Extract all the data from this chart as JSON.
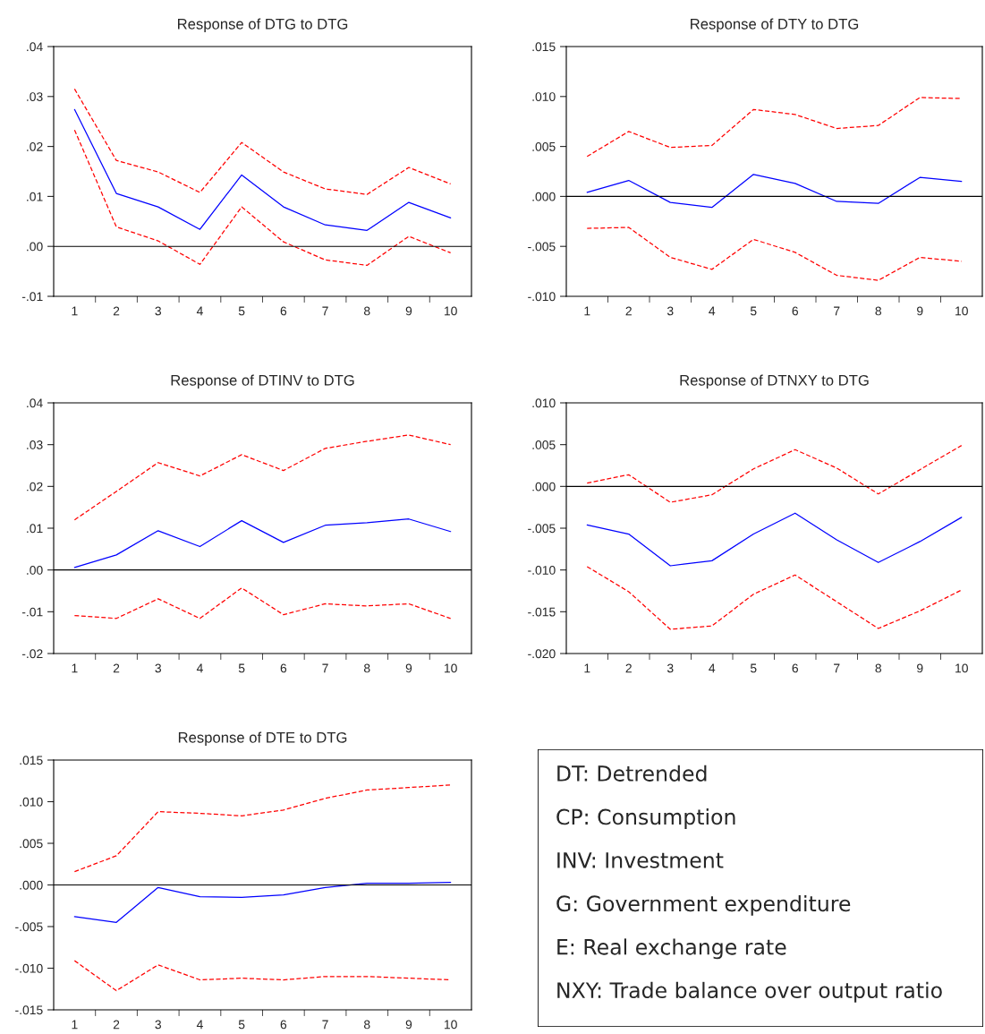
{
  "chart_data": [
    {
      "type": "line",
      "title": "Response of DTG to DTG",
      "categories": [
        "1",
        "2",
        "3",
        "4",
        "5",
        "6",
        "7",
        "8",
        "9",
        "10"
      ],
      "series": [
        {
          "color": "#0000ff",
          "line_style": "solid",
          "values": [
            0.0274,
            0.0106,
            0.0079,
            0.0034,
            0.0143,
            0.0079,
            0.0043,
            0.0032,
            0.0088,
            0.0057
          ]
        },
        {
          "color": "#ff0000",
          "line_style": "dashed",
          "values": [
            0.0315,
            0.0172,
            0.0149,
            0.0108,
            0.0208,
            0.0149,
            0.0115,
            0.0104,
            0.0158,
            0.0125
          ]
        },
        {
          "color": "#ff0000",
          "line_style": "dashed",
          "values": [
            0.0233,
            0.0039,
            0.0011,
            -0.0036,
            0.0079,
            0.0009,
            -0.0027,
            -0.0038,
            0.002,
            -0.0013
          ]
        }
      ],
      "ylim": [
        -0.01,
        0.04
      ],
      "yticks": [
        {
          "value": -0.01,
          "label": "-.01"
        },
        {
          "value": 0,
          "label": ".00"
        },
        {
          "value": 0.01,
          "label": ".01"
        },
        {
          "value": 0.02,
          "label": ".02"
        },
        {
          "value": 0.03,
          "label": ".03"
        },
        {
          "value": 0.04,
          "label": ".04"
        }
      ],
      "ref_lines": [
        {
          "axis": "y",
          "value": 0,
          "color": "#000000"
        }
      ],
      "grid": false,
      "legend": false
    },
    {
      "type": "line",
      "title": "Response of DTY to DTG",
      "categories": [
        "1",
        "2",
        "3",
        "4",
        "5",
        "6",
        "7",
        "8",
        "9",
        "10"
      ],
      "series": [
        {
          "color": "#0000ff",
          "line_style": "solid",
          "values": [
            0.0004,
            0.0016,
            -0.0006,
            -0.0011,
            0.0022,
            0.0013,
            -0.0005,
            -0.0007,
            0.0019,
            0.0015
          ]
        },
        {
          "color": "#ff0000",
          "line_style": "dashed",
          "values": [
            0.004,
            0.0065,
            0.0049,
            0.0051,
            0.0087,
            0.0082,
            0.0068,
            0.0071,
            0.0099,
            0.0098
          ]
        },
        {
          "color": "#ff0000",
          "line_style": "dashed",
          "values": [
            -0.0032,
            -0.0031,
            -0.0061,
            -0.0073,
            -0.0043,
            -0.0056,
            -0.0079,
            -0.0084,
            -0.0061,
            -0.0065
          ]
        }
      ],
      "ylim": [
        -0.01,
        0.015
      ],
      "yticks": [
        {
          "value": -0.01,
          "label": "-.010"
        },
        {
          "value": -0.005,
          "label": "-.005"
        },
        {
          "value": 0,
          "label": ".000"
        },
        {
          "value": 0.005,
          "label": ".005"
        },
        {
          "value": 0.01,
          "label": ".010"
        },
        {
          "value": 0.015,
          "label": ".015"
        }
      ],
      "ref_lines": [
        {
          "axis": "y",
          "value": 0,
          "color": "#000000"
        }
      ],
      "grid": false,
      "legend": false
    },
    {
      "type": "line",
      "title": "Response of DTINV to DTG",
      "categories": [
        "1",
        "2",
        "3",
        "4",
        "5",
        "6",
        "7",
        "8",
        "9",
        "10"
      ],
      "series": [
        {
          "color": "#0000ff",
          "line_style": "solid",
          "values": [
            0.0006,
            0.0036,
            0.0094,
            0.0056,
            0.0118,
            0.0066,
            0.0107,
            0.0113,
            0.0122,
            0.0092
          ]
        },
        {
          "color": "#ff0000",
          "line_style": "dashed",
          "values": [
            0.012,
            0.0188,
            0.0257,
            0.0225,
            0.0276,
            0.0238,
            0.0291,
            0.0308,
            0.0323,
            0.03
          ]
        },
        {
          "color": "#ff0000",
          "line_style": "dashed",
          "values": [
            -0.0109,
            -0.0116,
            -0.0069,
            -0.0116,
            -0.0043,
            -0.0107,
            -0.0081,
            -0.0086,
            -0.0081,
            -0.0116
          ]
        }
      ],
      "ylim": [
        -0.02,
        0.04
      ],
      "yticks": [
        {
          "value": -0.02,
          "label": "-.02"
        },
        {
          "value": -0.01,
          "label": "-.01"
        },
        {
          "value": 0,
          "label": ".00"
        },
        {
          "value": 0.01,
          "label": ".01"
        },
        {
          "value": 0.02,
          "label": ".02"
        },
        {
          "value": 0.03,
          "label": ".03"
        },
        {
          "value": 0.04,
          "label": ".04"
        }
      ],
      "ref_lines": [
        {
          "axis": "y",
          "value": 0,
          "color": "#000000"
        }
      ],
      "grid": false,
      "legend": false
    },
    {
      "type": "line",
      "title": "Response of DTNXY to DTG",
      "categories": [
        "1",
        "2",
        "3",
        "4",
        "5",
        "6",
        "7",
        "8",
        "9",
        "10"
      ],
      "series": [
        {
          "color": "#0000ff",
          "line_style": "solid",
          "values": [
            -0.0046,
            -0.0057,
            -0.0095,
            -0.0089,
            -0.0057,
            -0.0032,
            -0.0064,
            -0.0091,
            -0.0066,
            -0.0037
          ]
        },
        {
          "color": "#ff0000",
          "line_style": "dashed",
          "values": [
            0.0004,
            0.0014,
            -0.0019,
            -0.001,
            0.0021,
            0.0044,
            0.0022,
            -0.0009,
            0.002,
            0.0049
          ]
        },
        {
          "color": "#ff0000",
          "line_style": "dashed",
          "values": [
            -0.0096,
            -0.0126,
            -0.0171,
            -0.0167,
            -0.0129,
            -0.0106,
            -0.0138,
            -0.017,
            -0.0149,
            -0.0124
          ]
        }
      ],
      "ylim": [
        -0.02,
        0.01
      ],
      "yticks": [
        {
          "value": -0.02,
          "label": "-.020"
        },
        {
          "value": -0.015,
          "label": "-.015"
        },
        {
          "value": -0.01,
          "label": "-.010"
        },
        {
          "value": -0.005,
          "label": "-.005"
        },
        {
          "value": 0,
          "label": ".000"
        },
        {
          "value": 0.005,
          "label": ".005"
        },
        {
          "value": 0.01,
          "label": ".010"
        }
      ],
      "ref_lines": [
        {
          "axis": "y",
          "value": 0,
          "color": "#000000"
        }
      ],
      "grid": false,
      "legend": false
    },
    {
      "type": "line",
      "title": "Response of DTE to DTG",
      "categories": [
        "1",
        "2",
        "3",
        "4",
        "5",
        "6",
        "7",
        "8",
        "9",
        "10"
      ],
      "series": [
        {
          "color": "#0000ff",
          "line_style": "solid",
          "values": [
            -0.0038,
            -0.0045,
            -0.0003,
            -0.0014,
            -0.0015,
            -0.0012,
            -0.0003,
            0.0002,
            0.0002,
            0.0003
          ]
        },
        {
          "color": "#ff0000",
          "line_style": "dashed",
          "values": [
            0.0016,
            0.0035,
            0.0088,
            0.0086,
            0.0083,
            0.009,
            0.0104,
            0.0114,
            0.0117,
            0.012
          ]
        },
        {
          "color": "#ff0000",
          "line_style": "dashed",
          "values": [
            -0.0091,
            -0.0127,
            -0.0096,
            -0.0114,
            -0.0112,
            -0.0114,
            -0.011,
            -0.011,
            -0.0112,
            -0.0114
          ]
        }
      ],
      "ylim": [
        -0.015,
        0.015
      ],
      "yticks": [
        {
          "value": -0.015,
          "label": "-.015"
        },
        {
          "value": -0.01,
          "label": "-.010"
        },
        {
          "value": -0.005,
          "label": "-.005"
        },
        {
          "value": 0,
          "label": ".000"
        },
        {
          "value": 0.005,
          "label": ".005"
        },
        {
          "value": 0.01,
          "label": ".010"
        },
        {
          "value": 0.015,
          "label": ".015"
        }
      ],
      "ref_lines": [
        {
          "axis": "y",
          "value": 0,
          "color": "#000000"
        }
      ],
      "grid": false,
      "legend": false
    },
    {
      "type": "other",
      "annotations": [
        "DT: Detrended",
        "CP: Consumption",
        "INV: Investment",
        "G: Government expenditure",
        "E: Real exchange rate",
        "NXY: Trade balance over output ratio"
      ]
    }
  ]
}
